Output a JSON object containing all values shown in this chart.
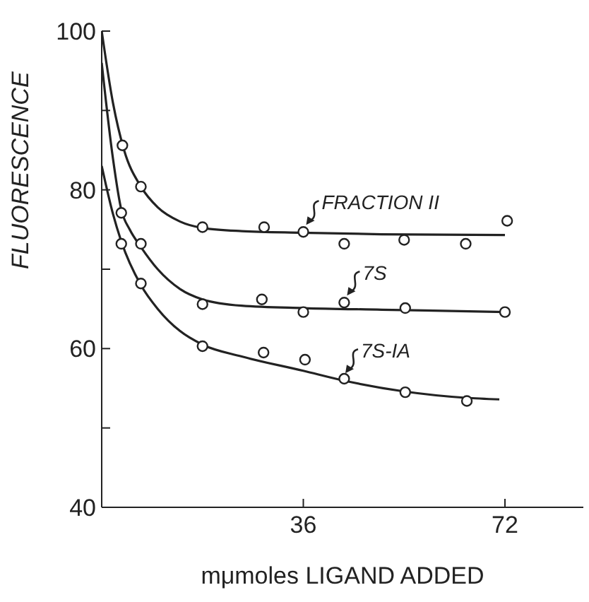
{
  "chart_data": {
    "type": "scatter",
    "xlabel": "mμmoles LIGAND ADDED",
    "ylabel": "FLUORESCENCE",
    "xlim": [
      0,
      86
    ],
    "xticks": [
      36,
      72
    ],
    "ylim": [
      40,
      100
    ],
    "yticks": [
      40,
      {
        "value": 50,
        "label": null
      },
      60,
      {
        "value": 70,
        "label": null
      },
      80,
      {
        "value": 90,
        "label": null
      },
      100
    ],
    "grid": false,
    "legend": false,
    "annotations": [
      {
        "text": "FRACTION II",
        "x": 36,
        "y": 74.7
      },
      {
        "text": "7S",
        "x": 43.3,
        "y": 65.8
      },
      {
        "text": "7S-IA",
        "x": 43,
        "y": 56
      }
    ],
    "series": [
      {
        "marker": "circle",
        "color": "#222222",
        "x": [
          3.7,
          7,
          18,
          29,
          36,
          43.3,
          54,
          65,
          72.4
        ],
        "values": [
          85.6,
          80.4,
          75.3,
          75.3,
          74.7,
          73.2,
          73.7,
          73.2,
          76.1
        ]
      },
      {
        "marker": "circle",
        "color": "#222222",
        "x": [
          3.5,
          7,
          18,
          28.6,
          36,
          43.3,
          54.2,
          72
        ],
        "values": [
          77.1,
          73.2,
          65.6,
          66.2,
          64.6,
          65.8,
          65.1,
          64.6
        ]
      },
      {
        "marker": "circle",
        "color": "#222222",
        "x": [
          3.5,
          7,
          18,
          28.9,
          36.3,
          43.3,
          54.2,
          65.2
        ],
        "values": [
          73.2,
          68.2,
          60.3,
          59.5,
          58.6,
          56.2,
          54.5,
          53.4
        ]
      },
      {
        "type": "line",
        "marker": "none",
        "color": "#222222",
        "x": [
          0,
          2,
          4,
          7,
          10,
          14,
          18,
          25,
          36,
          50,
          72
        ],
        "values": [
          100,
          91,
          85,
          80.4,
          77.8,
          76,
          75.2,
          74.8,
          74.6,
          74.4,
          74.3
        ]
      },
      {
        "type": "line",
        "marker": "none",
        "color": "#222222",
        "x": [
          0,
          2,
          3.5,
          5,
          7,
          10,
          14,
          18,
          25,
          36,
          50,
          72
        ],
        "values": [
          96,
          84,
          77.5,
          75,
          72.8,
          70,
          67.5,
          66.2,
          65.4,
          65.1,
          64.9,
          64.6
        ]
      },
      {
        "type": "line",
        "marker": "none",
        "color": "#222222",
        "x": [
          0,
          2,
          3.5,
          7,
          10,
          14,
          18,
          25,
          36,
          43,
          54,
          65,
          71
        ],
        "values": [
          83,
          77,
          73.5,
          68,
          65,
          62.2,
          60.5,
          59,
          57.2,
          56,
          54.6,
          53.8,
          53.6
        ]
      }
    ]
  }
}
